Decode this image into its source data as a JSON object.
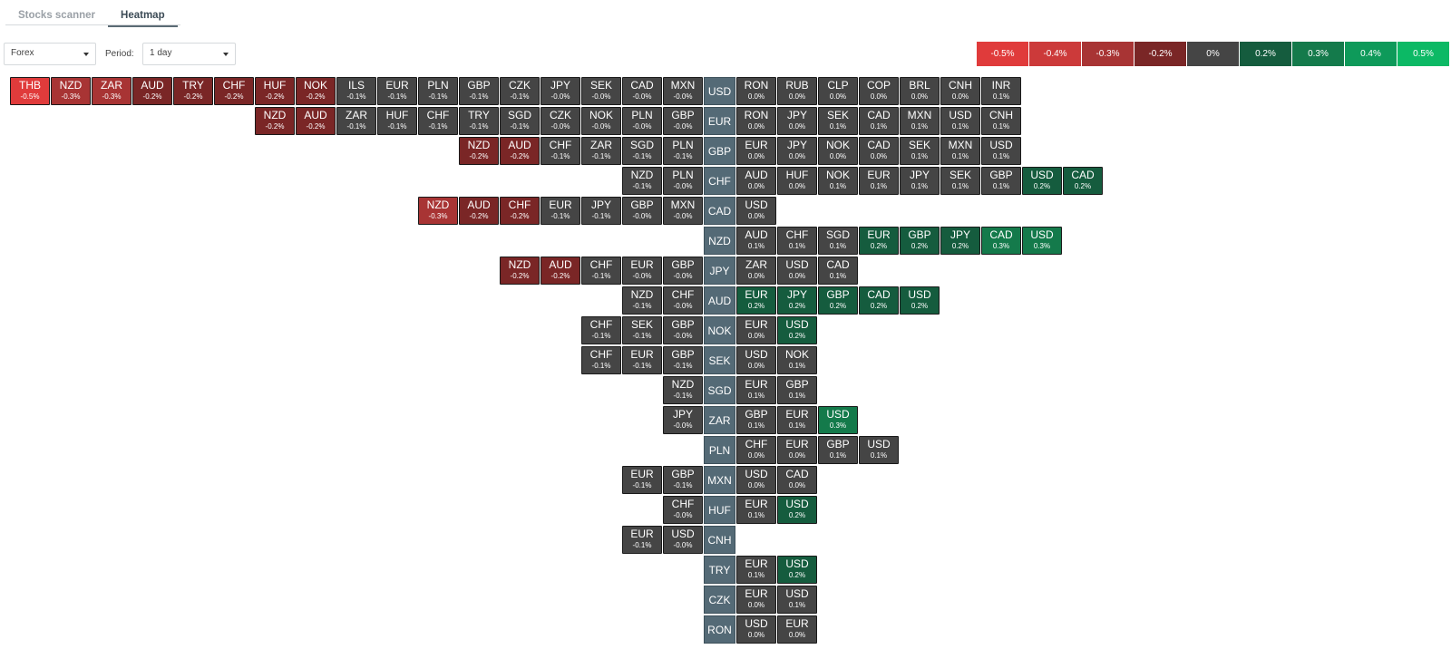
{
  "tabs": [
    {
      "label": "Stocks scanner",
      "active": false
    },
    {
      "label": "Heatmap",
      "active": true
    }
  ],
  "market_select": {
    "value": "Forex"
  },
  "period": {
    "label": "Period:",
    "value": "1 day"
  },
  "legend": [
    {
      "label": "-0.5%",
      "color": "#e03b3b"
    },
    {
      "label": "-0.4%",
      "color": "#cc3a3a"
    },
    {
      "label": "-0.3%",
      "color": "#a83434"
    },
    {
      "label": "-0.2%",
      "color": "#7a2626"
    },
    {
      "label": "0%",
      "color": "#454545"
    },
    {
      "label": "0.2%",
      "color": "#155c3e"
    },
    {
      "label": "0.3%",
      "color": "#147a4b"
    },
    {
      "label": "0.4%",
      "color": "#0e9a5a"
    },
    {
      "label": "0.5%",
      "color": "#0cb965"
    }
  ],
  "rows": [
    {
      "base": "USD",
      "left": [
        [
          "THB",
          "-0.5%"
        ],
        [
          "NZD",
          "-0.3%"
        ],
        [
          "ZAR",
          "-0.3%"
        ],
        [
          "AUD",
          "-0.2%"
        ],
        [
          "TRY",
          "-0.2%"
        ],
        [
          "CHF",
          "-0.2%"
        ],
        [
          "HUF",
          "-0.2%"
        ],
        [
          "NOK",
          "-0.2%"
        ],
        [
          "ILS",
          "-0.1%"
        ],
        [
          "EUR",
          "-0.1%"
        ],
        [
          "PLN",
          "-0.1%"
        ],
        [
          "GBP",
          "-0.1%"
        ],
        [
          "CZK",
          "-0.1%"
        ],
        [
          "JPY",
          "-0.0%"
        ],
        [
          "SEK",
          "-0.0%"
        ],
        [
          "CAD",
          "-0.0%"
        ],
        [
          "MXN",
          "-0.0%"
        ]
      ],
      "right": [
        [
          "RON",
          "0.0%"
        ],
        [
          "RUB",
          "0.0%"
        ],
        [
          "CLP",
          "0.0%"
        ],
        [
          "COP",
          "0.0%"
        ],
        [
          "BRL",
          "0.0%"
        ],
        [
          "CNH",
          "0.0%"
        ],
        [
          "INR",
          "0.1%"
        ]
      ]
    },
    {
      "base": "EUR",
      "left": [
        [
          "NZD",
          "-0.2%"
        ],
        [
          "AUD",
          "-0.2%"
        ],
        [
          "ZAR",
          "-0.1%"
        ],
        [
          "HUF",
          "-0.1%"
        ],
        [
          "CHF",
          "-0.1%"
        ],
        [
          "TRY",
          "-0.1%"
        ],
        [
          "SGD",
          "-0.1%"
        ],
        [
          "CZK",
          "-0.0%"
        ],
        [
          "NOK",
          "-0.0%"
        ],
        [
          "PLN",
          "-0.0%"
        ],
        [
          "GBP",
          "-0.0%"
        ]
      ],
      "right": [
        [
          "RON",
          "0.0%"
        ],
        [
          "JPY",
          "0.0%"
        ],
        [
          "SEK",
          "0.1%"
        ],
        [
          "CAD",
          "0.1%"
        ],
        [
          "MXN",
          "0.1%"
        ],
        [
          "USD",
          "0.1%"
        ],
        [
          "CNH",
          "0.1%"
        ]
      ]
    },
    {
      "base": "GBP",
      "left": [
        [
          "NZD",
          "-0.2%"
        ],
        [
          "AUD",
          "-0.2%"
        ],
        [
          "CHF",
          "-0.1%"
        ],
        [
          "ZAR",
          "-0.1%"
        ],
        [
          "SGD",
          "-0.1%"
        ],
        [
          "PLN",
          "-0.1%"
        ]
      ],
      "right": [
        [
          "EUR",
          "0.0%"
        ],
        [
          "JPY",
          "0.0%"
        ],
        [
          "NOK",
          "0.0%"
        ],
        [
          "CAD",
          "0.0%"
        ],
        [
          "SEK",
          "0.1%"
        ],
        [
          "MXN",
          "0.1%"
        ],
        [
          "USD",
          "0.1%"
        ]
      ]
    },
    {
      "base": "CHF",
      "left": [
        [
          "NZD",
          "-0.1%"
        ],
        [
          "PLN",
          "-0.0%"
        ]
      ],
      "right": [
        [
          "AUD",
          "0.0%"
        ],
        [
          "HUF",
          "0.0%"
        ],
        [
          "NOK",
          "0.1%"
        ],
        [
          "EUR",
          "0.1%"
        ],
        [
          "JPY",
          "0.1%"
        ],
        [
          "SEK",
          "0.1%"
        ],
        [
          "GBP",
          "0.1%"
        ],
        [
          "USD",
          "0.2%"
        ],
        [
          "CAD",
          "0.2%"
        ]
      ]
    },
    {
      "base": "CAD",
      "left": [
        [
          "NZD",
          "-0.3%"
        ],
        [
          "AUD",
          "-0.2%"
        ],
        [
          "CHF",
          "-0.2%"
        ],
        [
          "EUR",
          "-0.1%"
        ],
        [
          "JPY",
          "-0.1%"
        ],
        [
          "GBP",
          "-0.0%"
        ],
        [
          "MXN",
          "-0.0%"
        ]
      ],
      "right": [
        [
          "USD",
          "0.0%"
        ]
      ]
    },
    {
      "base": "NZD",
      "left": [],
      "right": [
        [
          "AUD",
          "0.1%"
        ],
        [
          "CHF",
          "0.1%"
        ],
        [
          "SGD",
          "0.1%"
        ],
        [
          "EUR",
          "0.2%"
        ],
        [
          "GBP",
          "0.2%"
        ],
        [
          "JPY",
          "0.2%"
        ],
        [
          "CAD",
          "0.3%"
        ],
        [
          "USD",
          "0.3%"
        ]
      ]
    },
    {
      "base": "JPY",
      "left": [
        [
          "NZD",
          "-0.2%"
        ],
        [
          "AUD",
          "-0.2%"
        ],
        [
          "CHF",
          "-0.1%"
        ],
        [
          "EUR",
          "-0.0%"
        ],
        [
          "GBP",
          "-0.0%"
        ]
      ],
      "right": [
        [
          "ZAR",
          "0.0%"
        ],
        [
          "USD",
          "0.0%"
        ],
        [
          "CAD",
          "0.1%"
        ]
      ]
    },
    {
      "base": "AUD",
      "left": [
        [
          "NZD",
          "-0.1%"
        ],
        [
          "CHF",
          "-0.0%"
        ]
      ],
      "right": [
        [
          "EUR",
          "0.2%"
        ],
        [
          "JPY",
          "0.2%"
        ],
        [
          "GBP",
          "0.2%"
        ],
        [
          "CAD",
          "0.2%"
        ],
        [
          "USD",
          "0.2%"
        ]
      ]
    },
    {
      "base": "NOK",
      "left": [
        [
          "CHF",
          "-0.1%"
        ],
        [
          "SEK",
          "-0.1%"
        ],
        [
          "GBP",
          "-0.0%"
        ]
      ],
      "right": [
        [
          "EUR",
          "0.0%"
        ],
        [
          "USD",
          "0.2%"
        ]
      ]
    },
    {
      "base": "SEK",
      "left": [
        [
          "CHF",
          "-0.1%"
        ],
        [
          "EUR",
          "-0.1%"
        ],
        [
          "GBP",
          "-0.1%"
        ]
      ],
      "right": [
        [
          "USD",
          "0.0%"
        ],
        [
          "NOK",
          "0.1%"
        ]
      ]
    },
    {
      "base": "SGD",
      "left": [
        [
          "NZD",
          "-0.1%"
        ]
      ],
      "right": [
        [
          "EUR",
          "0.1%"
        ],
        [
          "GBP",
          "0.1%"
        ]
      ]
    },
    {
      "base": "ZAR",
      "left": [
        [
          "JPY",
          "-0.0%"
        ]
      ],
      "right": [
        [
          "GBP",
          "0.1%"
        ],
        [
          "EUR",
          "0.1%"
        ],
        [
          "USD",
          "0.3%"
        ]
      ]
    },
    {
      "base": "PLN",
      "left": [],
      "right": [
        [
          "CHF",
          "0.0%"
        ],
        [
          "EUR",
          "0.0%"
        ],
        [
          "GBP",
          "0.1%"
        ],
        [
          "USD",
          "0.1%"
        ]
      ]
    },
    {
      "base": "MXN",
      "left": [
        [
          "EUR",
          "-0.1%"
        ],
        [
          "GBP",
          "-0.1%"
        ]
      ],
      "right": [
        [
          "USD",
          "0.0%"
        ],
        [
          "CAD",
          "0.0%"
        ]
      ]
    },
    {
      "base": "HUF",
      "left": [
        [
          "CHF",
          "-0.0%"
        ]
      ],
      "right": [
        [
          "EUR",
          "0.1%"
        ],
        [
          "USD",
          "0.2%"
        ]
      ]
    },
    {
      "base": "CNH",
      "left": [
        [
          "EUR",
          "-0.1%"
        ],
        [
          "USD",
          "-0.0%"
        ]
      ],
      "right": []
    },
    {
      "base": "TRY",
      "left": [],
      "right": [
        [
          "EUR",
          "0.1%"
        ],
        [
          "USD",
          "0.2%"
        ]
      ]
    },
    {
      "base": "CZK",
      "left": [],
      "right": [
        [
          "EUR",
          "0.0%"
        ],
        [
          "USD",
          "0.1%"
        ]
      ]
    },
    {
      "base": "RON",
      "left": [],
      "right": [
        [
          "USD",
          "0.0%"
        ],
        [
          "EUR",
          "0.0%"
        ]
      ]
    }
  ]
}
